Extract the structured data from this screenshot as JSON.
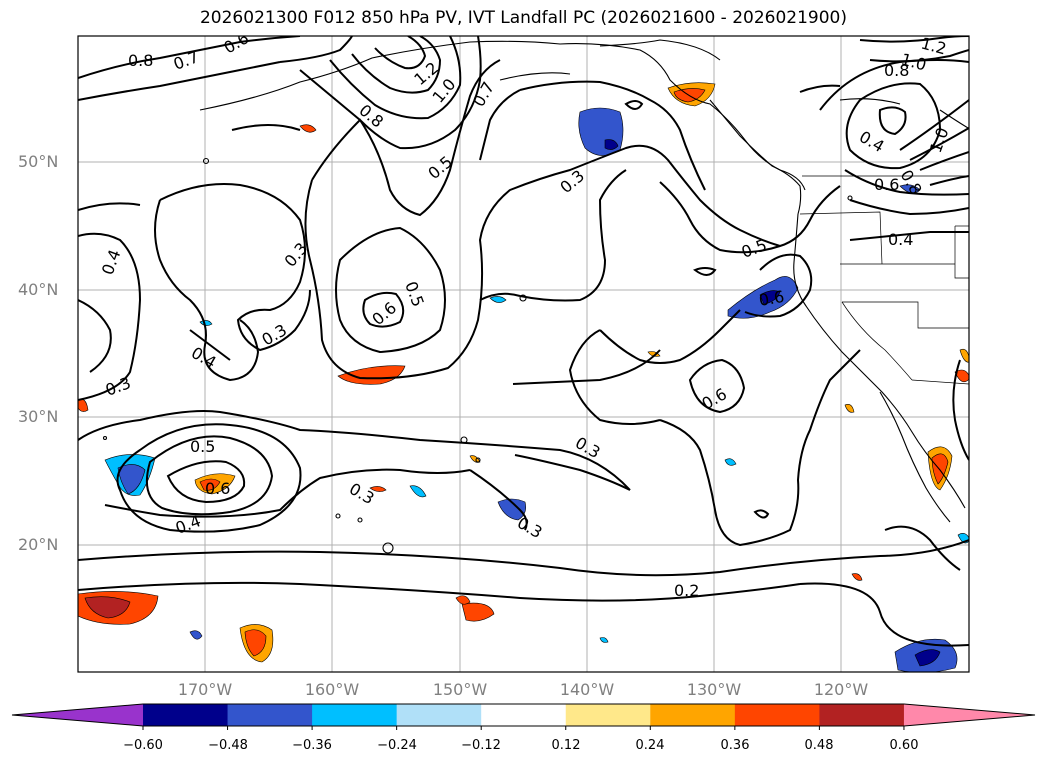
{
  "title": "2026021300 F012 850 hPa PV, IVT Landfall PC (2026021600 - 2026021900)",
  "lat_labels": [
    "50°N",
    "40°N",
    "30°N",
    "20°N"
  ],
  "lon_labels": [
    "170°W",
    "160°W",
    "150°W",
    "140°W",
    "130°W",
    "120°W"
  ],
  "colorbar": {
    "ticks": [
      "−0.60",
      "−0.48",
      "−0.36",
      "−0.24",
      "−0.12",
      "0.12",
      "0.24",
      "0.36",
      "0.48",
      "0.60"
    ],
    "colors": [
      "#9933cc",
      "#00008b",
      "#3355cc",
      "#00bfff",
      "#b0e0f8",
      "#ffffff",
      "#ffe88a",
      "#ffa500",
      "#ff4500",
      "#b22222",
      "#ff88aa"
    ]
  },
  "contour_labels": [
    "0.8",
    "0.7",
    "0.6",
    "0.8",
    "1.2",
    "1.0",
    "0.7",
    "0.5",
    "0.3",
    "0.3",
    "0.4",
    "0.3",
    "0.4",
    "0.5",
    "0.6",
    "0.3",
    "0.5",
    "0.6",
    "0.5",
    "0.6",
    "0.4",
    "0.4",
    "0.8",
    "1.0",
    "1.2",
    "1.0",
    "0.8",
    "0.6",
    "0.3",
    "0.2",
    "0.3",
    "0.6",
    "0.4",
    "0.3"
  ]
}
